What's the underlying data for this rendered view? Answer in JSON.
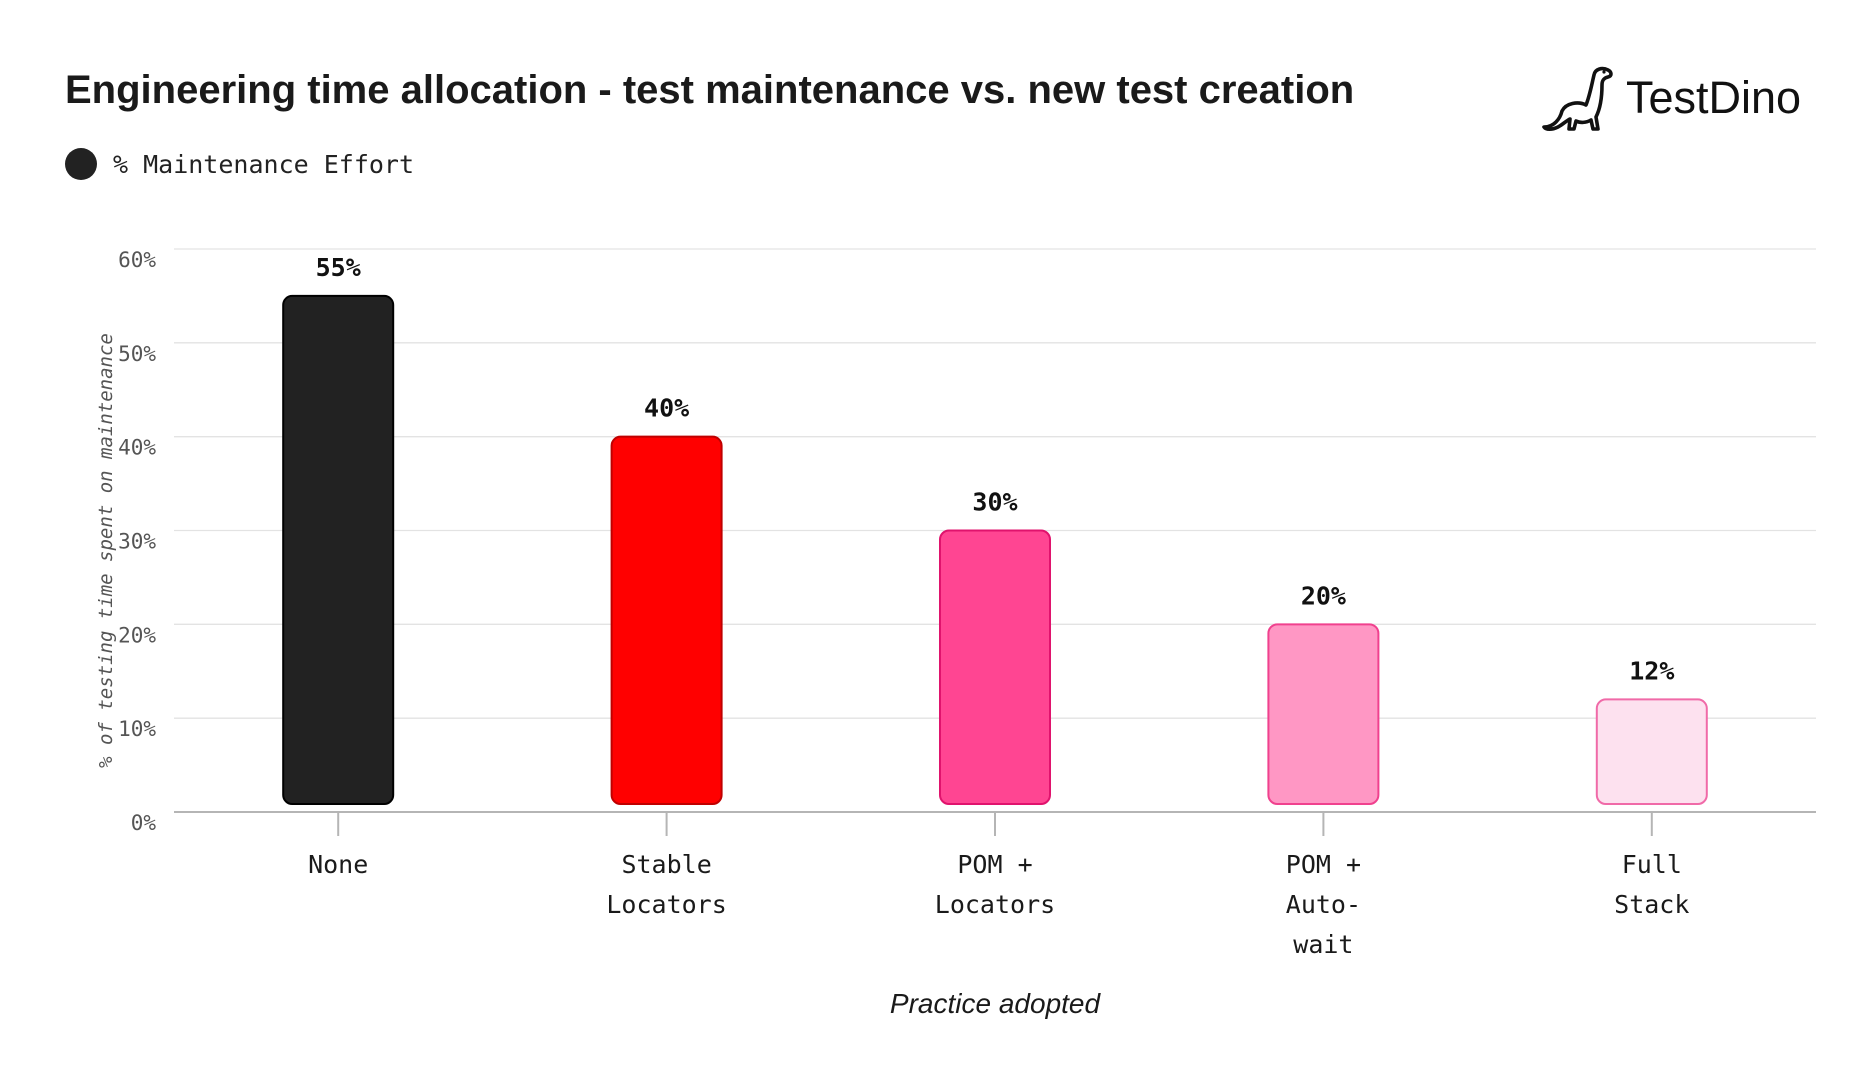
{
  "header": {
    "title": "Engineering time allocation - test maintenance vs. new test creation",
    "logo_text": "TestDino",
    "logo_icon": "dinosaur-icon"
  },
  "legend": {
    "label": "% Maintenance Effort",
    "color": "#222222"
  },
  "chart_data": {
    "type": "bar",
    "title": "Engineering time allocation - test maintenance vs. new test creation",
    "xlabel": "Practice adopted",
    "ylabel": "% of testing time spent on maintenance",
    "categories": [
      [
        "None"
      ],
      [
        "Stable",
        "Locators"
      ],
      [
        "POM +",
        "Locators"
      ],
      [
        "POM +",
        "Auto-",
        "wait"
      ],
      [
        "Full",
        "Stack"
      ]
    ],
    "series": [
      {
        "name": "% Maintenance Effort",
        "values": [
          55,
          40,
          30,
          20,
          12
        ],
        "labels": [
          "55%",
          "40%",
          "30%",
          "20%",
          "12%"
        ]
      }
    ],
    "bar_colors": [
      "#222222",
      "#ff0000",
      "#ff4592",
      "#ff97c4",
      "#fde1ef"
    ],
    "bar_stroke_colors": [
      "#000000",
      "#c00000",
      "#e0136d",
      "#f0418e",
      "#f06aa8"
    ],
    "ylim": [
      0,
      60
    ],
    "yticks": [
      0,
      10,
      20,
      30,
      40,
      50,
      60
    ],
    "ytick_labels": [
      "0%",
      "10%",
      "20%",
      "30%",
      "40%",
      "50%",
      "60%"
    ],
    "grid": true,
    "legend_position": "top-left"
  }
}
